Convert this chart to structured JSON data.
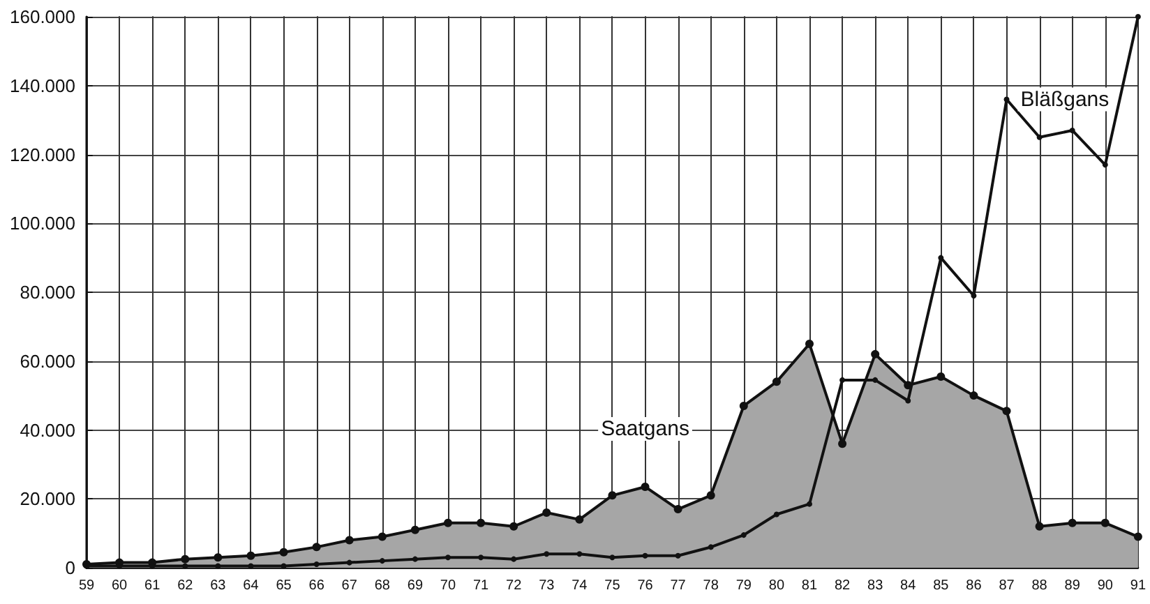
{
  "chart_data": {
    "type": "line",
    "categories": [
      "59",
      "60",
      "61",
      "62",
      "63",
      "64",
      "65",
      "66",
      "67",
      "68",
      "69",
      "70",
      "71",
      "72",
      "73",
      "74",
      "75",
      "76",
      "77",
      "78",
      "79",
      "80",
      "81",
      "82",
      "83",
      "84",
      "85",
      "86",
      "87",
      "88",
      "89",
      "90",
      "91"
    ],
    "series": [
      {
        "name": "Saatgans",
        "type": "area",
        "color": "#a6a6a6",
        "values": [
          1000,
          1500,
          1500,
          2500,
          3000,
          3500,
          4500,
          6000,
          8000,
          9000,
          11000,
          13000,
          13000,
          12000,
          16000,
          14000,
          21000,
          23500,
          17000,
          21000,
          47000,
          54000,
          65000,
          36000,
          62000,
          53000,
          55500,
          50000,
          45500,
          12000,
          13000,
          13000,
          9000
        ]
      },
      {
        "name": "Bläßgans",
        "type": "line",
        "color": "#111111",
        "values": [
          500,
          500,
          500,
          500,
          500,
          500,
          500,
          1000,
          1500,
          2000,
          2500,
          3000,
          3000,
          2500,
          4000,
          4000,
          3000,
          3500,
          3500,
          6000,
          9500,
          15500,
          18500,
          54500,
          54500,
          48500,
          90000,
          79000,
          136000,
          125000,
          127000,
          117000,
          160000
        ]
      }
    ],
    "ylim": [
      0,
      160000
    ],
    "yticks": [
      {
        "value": 0,
        "label": "0"
      },
      {
        "value": 20000,
        "label": "20.000"
      },
      {
        "value": 40000,
        "label": "40.000"
      },
      {
        "value": 60000,
        "label": "60.000"
      },
      {
        "value": 80000,
        "label": "80.000"
      },
      {
        "value": 100000,
        "label": "100.000"
      },
      {
        "value": 120000,
        "label": "120.000"
      },
      {
        "value": 140000,
        "label": "140.000"
      },
      {
        "value": 160000,
        "label": "160.000"
      }
    ],
    "grid": true,
    "legend": false,
    "marker": "circle",
    "line_style": "solid"
  }
}
